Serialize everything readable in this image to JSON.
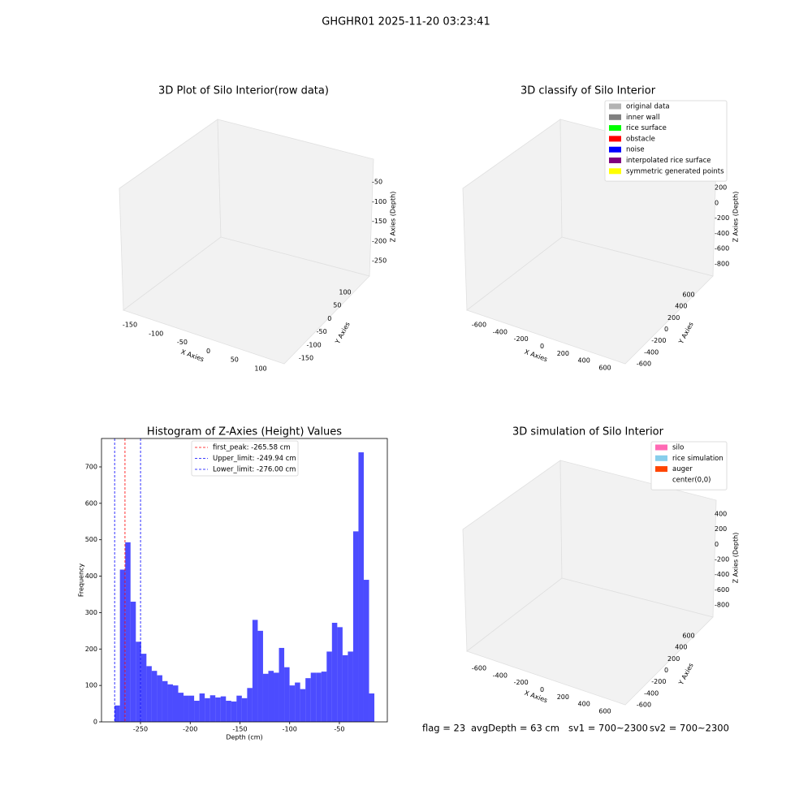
{
  "title": "GHGHR01 2025-11-20 03:23:41",
  "chart_data": [
    {
      "type": "scatter3d",
      "title": "3D Plot of Silo Interior(row data)",
      "x_label": "X Axies",
      "y_label": "Y Axies",
      "z_label": "Z Axies (Depth)",
      "xticks": [
        -150,
        -100,
        -50,
        0,
        50,
        100
      ],
      "yticks": [
        -150,
        -100,
        -50,
        0,
        50,
        100
      ],
      "zticks": [
        -250,
        -200,
        -150,
        -100,
        -50
      ]
    },
    {
      "type": "scatter3d",
      "title": "3D classify of Silo Interior",
      "x_label": "X Axies",
      "y_label": "Y Axies",
      "z_label": "Z Axies (Depth)",
      "xticks": [
        -600,
        -400,
        -200,
        0,
        200,
        400,
        600
      ],
      "yticks": [
        -600,
        -400,
        -200,
        0,
        200,
        400,
        600
      ],
      "zticks": [
        -800,
        -600,
        -400,
        -200,
        0,
        200
      ],
      "legend": [
        {
          "name": "original data",
          "color": "#b3b3b3"
        },
        {
          "name": "inner wall",
          "color": "#808080"
        },
        {
          "name": "rice surface",
          "color": "#00ff00"
        },
        {
          "name": "obstacle",
          "color": "#ff0000"
        },
        {
          "name": "noise",
          "color": "#0000ff"
        },
        {
          "name": "interpolated rice surface",
          "color": "#800080"
        },
        {
          "name": "symmetric generated points",
          "color": "#ffff00"
        }
      ]
    },
    {
      "type": "histogram",
      "title": "Histogram of Z-Axies (Height) Values",
      "x_label": "Depth (cm)",
      "y_label": "Frequency",
      "color": "#0000ff",
      "bins": [
        -276,
        -270.67,
        -265.34,
        -260.01,
        -254.68,
        -249.35,
        -244.02,
        -238.69,
        -233.36,
        -228.03,
        -222.7,
        -217.37,
        -212.04,
        -206.71,
        -201.38,
        -196.05,
        -190.72,
        -185.39,
        -180.06,
        -174.73,
        -169.4,
        -164.07,
        -158.74,
        -153.41,
        -148.08,
        -142.75,
        -137.42,
        -132.09,
        -126.76,
        -121.43,
        -116.1,
        -110.77,
        -105.44,
        -100.11,
        -94.78,
        -89.45,
        -84.12,
        -78.79,
        -73.46,
        -68.13,
        -62.8,
        -57.47,
        -52.14,
        -46.81,
        -41.48,
        -36.15,
        -30.82,
        -25.49,
        -20.16,
        -14.83
      ],
      "values": [
        45,
        418,
        493,
        330,
        220,
        187,
        153,
        140,
        128,
        112,
        103,
        100,
        80,
        72,
        72,
        58,
        78,
        65,
        73,
        67,
        70,
        58,
        56,
        72,
        65,
        93,
        280,
        250,
        132,
        140,
        135,
        203,
        150,
        100,
        108,
        90,
        120,
        135,
        135,
        138,
        193,
        272,
        260,
        183,
        193,
        523,
        740,
        390,
        78
      ],
      "xlim": [
        -289.2,
        -1.8
      ],
      "ylim": [
        0,
        778
      ],
      "xticks": [
        -250,
        -200,
        -150,
        -100,
        -50
      ],
      "yticks": [
        0,
        100,
        200,
        300,
        400,
        500,
        600,
        700
      ],
      "vlines": [
        {
          "name": "first_peak: -265.58 cm",
          "value": -265.58,
          "color": "#ff0000"
        },
        {
          "name": "Upper_limit: -249.94 cm",
          "value": -249.94,
          "color": "#0000ff"
        },
        {
          "name": "Lower_limit: -276.00 cm",
          "value": -276.0,
          "color": "#0000ff"
        }
      ]
    },
    {
      "type": "scatter3d",
      "title": "3D simulation of Silo Interior",
      "x_label": "X Axies",
      "y_label": "Y Axies",
      "z_label": "Z Axies (Depth)",
      "xticks": [
        -600,
        -400,
        -200,
        0,
        200,
        400,
        600
      ],
      "yticks": [
        -600,
        -400,
        -200,
        0,
        200,
        400,
        600
      ],
      "zticks": [
        -800,
        -600,
        -400,
        -200,
        0,
        200,
        400
      ],
      "legend": [
        {
          "name": "silo",
          "color": "#ff69b4"
        },
        {
          "name": "rice simulation",
          "color": "#87ceeb"
        },
        {
          "name": "auger",
          "color": "#ff4500"
        },
        {
          "name": "center(0,0)",
          "color": "#ffffff"
        }
      ]
    }
  ],
  "footer": [
    "flag = 23",
    "avgDepth = 63 cm",
    "sv1 = 700~2300",
    "sv2 = 700~2300"
  ]
}
